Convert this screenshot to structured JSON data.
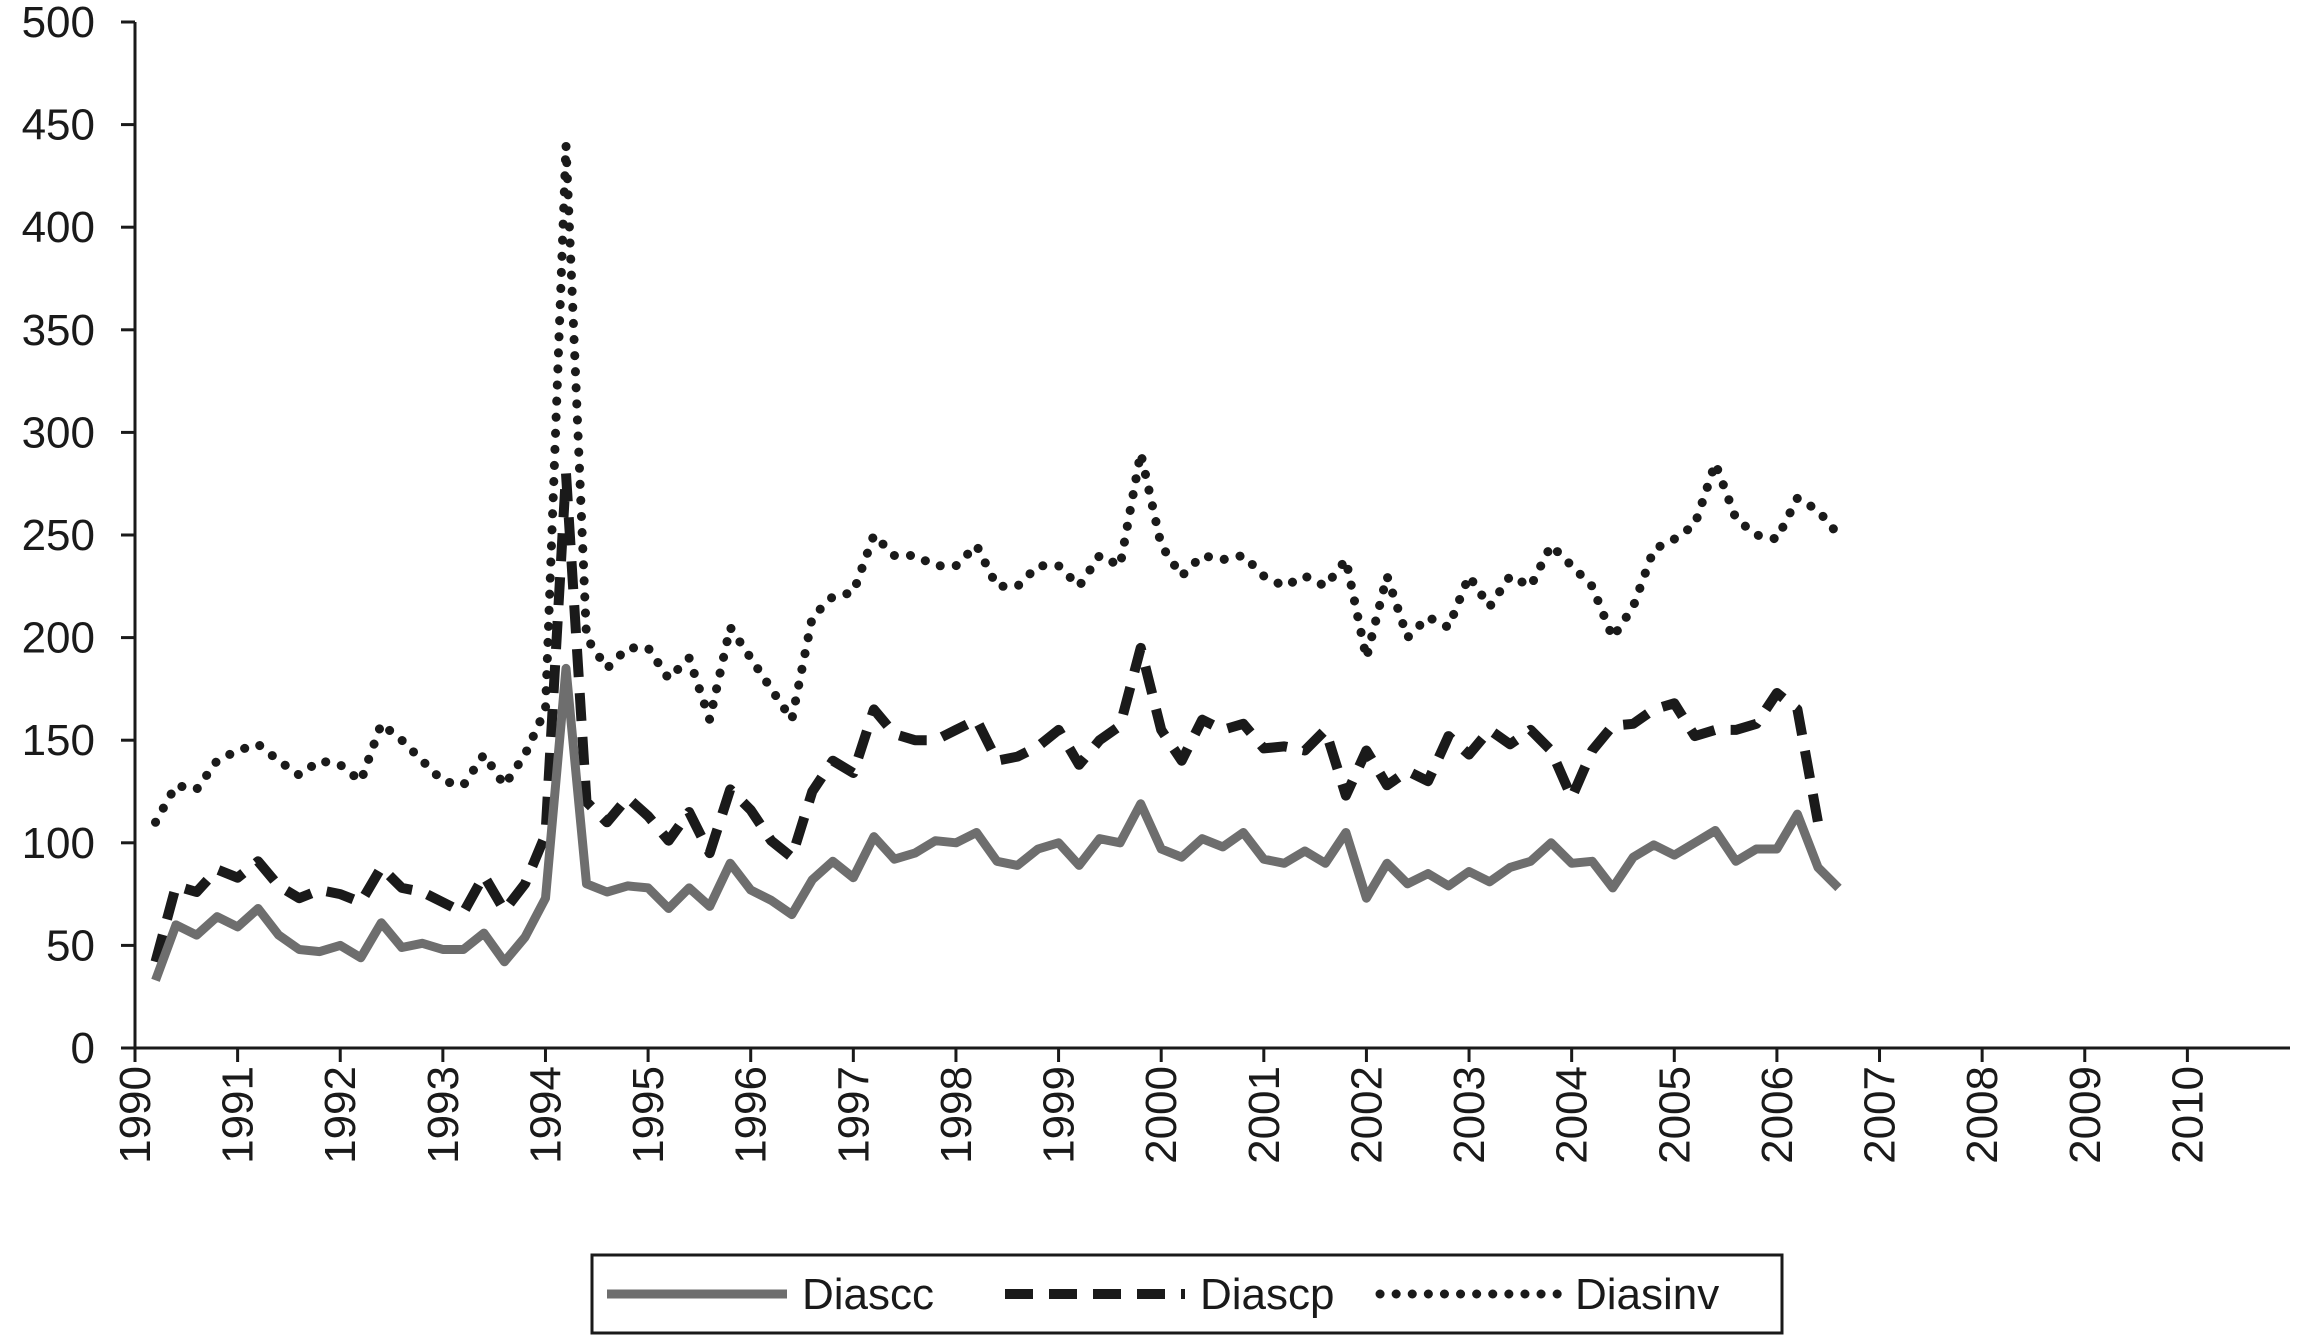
{
  "chart_data": {
    "type": "line",
    "title": "",
    "xlabel": "",
    "ylabel": "",
    "xlim": [
      1990,
      2011
    ],
    "ylim": [
      0,
      500
    ],
    "x_ticks": [
      "1990",
      "1991",
      "1992",
      "1993",
      "1994",
      "1995",
      "1996",
      "1997",
      "1998",
      "1999",
      "2000",
      "2001",
      "2002",
      "2003",
      "2004",
      "2005",
      "2006",
      "2007",
      "2008",
      "2009",
      "2010"
    ],
    "y_ticks": [
      "0",
      "50",
      "100",
      "150",
      "200",
      "250",
      "300",
      "350",
      "400",
      "450",
      "500"
    ],
    "grid": false,
    "legend": {
      "position": "bottom",
      "entries": [
        "Diascc",
        "Diascp",
        "Diasinv"
      ]
    },
    "series": [
      {
        "name": "Diascc",
        "style": "solid",
        "color": "#6e6e6e",
        "points": [
          [
            1990.2,
            33
          ],
          [
            1990.4,
            60
          ],
          [
            1990.6,
            55
          ],
          [
            1990.8,
            64
          ],
          [
            1991.0,
            59
          ],
          [
            1991.2,
            68
          ],
          [
            1991.4,
            55
          ],
          [
            1991.6,
            48
          ],
          [
            1991.8,
            47
          ],
          [
            1992.0,
            50
          ],
          [
            1992.2,
            44
          ],
          [
            1992.4,
            61
          ],
          [
            1992.6,
            49
          ],
          [
            1992.8,
            51
          ],
          [
            1993.0,
            48
          ],
          [
            1993.2,
            48
          ],
          [
            1993.4,
            56
          ],
          [
            1993.6,
            42
          ],
          [
            1993.8,
            54
          ],
          [
            1994.0,
            73
          ],
          [
            1994.2,
            185
          ],
          [
            1994.4,
            80
          ],
          [
            1994.6,
            76
          ],
          [
            1994.8,
            79
          ],
          [
            1995.0,
            78
          ],
          [
            1995.2,
            68
          ],
          [
            1995.4,
            78
          ],
          [
            1995.6,
            69
          ],
          [
            1995.8,
            90
          ],
          [
            1996.0,
            77
          ],
          [
            1996.2,
            72
          ],
          [
            1996.4,
            65
          ],
          [
            1996.6,
            82
          ],
          [
            1996.8,
            91
          ],
          [
            1997.0,
            83
          ],
          [
            1997.2,
            103
          ],
          [
            1997.4,
            92
          ],
          [
            1997.6,
            95
          ],
          [
            1997.8,
            101
          ],
          [
            1998.0,
            100
          ],
          [
            1998.2,
            105
          ],
          [
            1998.4,
            91
          ],
          [
            1998.6,
            89
          ],
          [
            1998.8,
            97
          ],
          [
            1999.0,
            100
          ],
          [
            1999.2,
            89
          ],
          [
            1999.4,
            102
          ],
          [
            1999.6,
            100
          ],
          [
            1999.8,
            119
          ],
          [
            2000.0,
            97
          ],
          [
            2000.2,
            93
          ],
          [
            2000.4,
            102
          ],
          [
            2000.6,
            98
          ],
          [
            2000.8,
            105
          ],
          [
            2001.0,
            92
          ],
          [
            2001.2,
            90
          ],
          [
            2001.4,
            96
          ],
          [
            2001.6,
            90
          ],
          [
            2001.8,
            105
          ],
          [
            2002.0,
            73
          ],
          [
            2002.2,
            90
          ],
          [
            2002.4,
            80
          ],
          [
            2002.6,
            85
          ],
          [
            2002.8,
            79
          ],
          [
            2003.0,
            86
          ],
          [
            2003.2,
            81
          ],
          [
            2003.4,
            88
          ],
          [
            2003.6,
            91
          ],
          [
            2003.8,
            100
          ],
          [
            2004.0,
            90
          ],
          [
            2004.2,
            91
          ],
          [
            2004.4,
            78
          ],
          [
            2004.6,
            93
          ],
          [
            2004.8,
            99
          ],
          [
            2005.0,
            94
          ],
          [
            2005.2,
            100
          ],
          [
            2005.4,
            106
          ],
          [
            2005.6,
            91
          ],
          [
            2005.8,
            97
          ],
          [
            2006.0,
            97
          ],
          [
            2006.2,
            114
          ],
          [
            2006.4,
            88
          ],
          [
            2006.6,
            78
          ]
        ]
      },
      {
        "name": "Diascp",
        "style": "dashed",
        "color": "#1a1a1a",
        "points": [
          [
            1990.2,
            42
          ],
          [
            1990.4,
            79
          ],
          [
            1990.6,
            76
          ],
          [
            1990.8,
            87
          ],
          [
            1991.0,
            83
          ],
          [
            1991.2,
            91
          ],
          [
            1991.4,
            79
          ],
          [
            1991.6,
            73
          ],
          [
            1991.8,
            77
          ],
          [
            1992.0,
            75
          ],
          [
            1992.2,
            71
          ],
          [
            1992.4,
            88
          ],
          [
            1992.6,
            78
          ],
          [
            1992.8,
            76
          ],
          [
            1993.0,
            71
          ],
          [
            1993.2,
            66
          ],
          [
            1993.4,
            84
          ],
          [
            1993.6,
            67
          ],
          [
            1993.8,
            80
          ],
          [
            1994.0,
            104
          ],
          [
            1994.2,
            280
          ],
          [
            1994.4,
            120
          ],
          [
            1994.6,
            110
          ],
          [
            1994.8,
            122
          ],
          [
            1995.0,
            113
          ],
          [
            1995.2,
            101
          ],
          [
            1995.4,
            115
          ],
          [
            1995.6,
            95
          ],
          [
            1995.8,
            126
          ],
          [
            1996.0,
            116
          ],
          [
            1996.2,
            101
          ],
          [
            1996.4,
            93
          ],
          [
            1996.6,
            125
          ],
          [
            1996.8,
            140
          ],
          [
            1997.0,
            134
          ],
          [
            1997.2,
            165
          ],
          [
            1997.4,
            153
          ],
          [
            1997.6,
            150
          ],
          [
            1997.8,
            150
          ],
          [
            1998.0,
            155
          ],
          [
            1998.2,
            160
          ],
          [
            1998.4,
            140
          ],
          [
            1998.6,
            142
          ],
          [
            1998.8,
            147
          ],
          [
            1999.0,
            155
          ],
          [
            1999.2,
            138
          ],
          [
            1999.4,
            150
          ],
          [
            1999.6,
            157
          ],
          [
            1999.8,
            195
          ],
          [
            2000.0,
            155
          ],
          [
            2000.2,
            140
          ],
          [
            2000.4,
            160
          ],
          [
            2000.6,
            155
          ],
          [
            2000.8,
            158
          ],
          [
            2001.0,
            146
          ],
          [
            2001.2,
            147
          ],
          [
            2001.4,
            145
          ],
          [
            2001.6,
            155
          ],
          [
            2001.8,
            123
          ],
          [
            2002.0,
            145
          ],
          [
            2002.2,
            128
          ],
          [
            2002.4,
            135
          ],
          [
            2002.6,
            130
          ],
          [
            2002.8,
            152
          ],
          [
            2003.0,
            143
          ],
          [
            2003.2,
            155
          ],
          [
            2003.4,
            148
          ],
          [
            2003.6,
            155
          ],
          [
            2003.8,
            145
          ],
          [
            2004.0,
            122
          ],
          [
            2004.2,
            145
          ],
          [
            2004.4,
            157
          ],
          [
            2004.6,
            158
          ],
          [
            2004.8,
            165
          ],
          [
            2005.0,
            168
          ],
          [
            2005.2,
            152
          ],
          [
            2005.4,
            155
          ],
          [
            2005.6,
            155
          ],
          [
            2005.8,
            158
          ],
          [
            2006.0,
            173
          ],
          [
            2006.2,
            165
          ],
          [
            2006.4,
            110
          ]
        ]
      },
      {
        "name": "Diasinv",
        "style": "dotted",
        "color": "#1a1a1a",
        "points": [
          [
            1990.2,
            110
          ],
          [
            1990.4,
            128
          ],
          [
            1990.6,
            126
          ],
          [
            1990.8,
            140
          ],
          [
            1991.0,
            145
          ],
          [
            1991.2,
            148
          ],
          [
            1991.4,
            140
          ],
          [
            1991.6,
            133
          ],
          [
            1991.8,
            140
          ],
          [
            1992.0,
            138
          ],
          [
            1992.2,
            130
          ],
          [
            1992.4,
            158
          ],
          [
            1992.6,
            150
          ],
          [
            1992.8,
            140
          ],
          [
            1993.0,
            130
          ],
          [
            1993.2,
            128
          ],
          [
            1993.4,
            143
          ],
          [
            1993.6,
            128
          ],
          [
            1993.8,
            143
          ],
          [
            1994.0,
            165
          ],
          [
            1994.2,
            440
          ],
          [
            1994.4,
            200
          ],
          [
            1994.6,
            185
          ],
          [
            1994.8,
            195
          ],
          [
            1995.0,
            195
          ],
          [
            1995.2,
            180
          ],
          [
            1995.4,
            190
          ],
          [
            1995.6,
            160
          ],
          [
            1995.8,
            205
          ],
          [
            1996.0,
            190
          ],
          [
            1996.2,
            175
          ],
          [
            1996.4,
            160
          ],
          [
            1996.6,
            210
          ],
          [
            1996.8,
            220
          ],
          [
            1997.0,
            222
          ],
          [
            1997.2,
            250
          ],
          [
            1997.4,
            240
          ],
          [
            1997.6,
            240
          ],
          [
            1997.8,
            235
          ],
          [
            1998.0,
            235
          ],
          [
            1998.2,
            245
          ],
          [
            1998.4,
            225
          ],
          [
            1998.6,
            225
          ],
          [
            1998.8,
            235
          ],
          [
            1999.0,
            235
          ],
          [
            1999.2,
            225
          ],
          [
            1999.4,
            240
          ],
          [
            1999.6,
            235
          ],
          [
            1999.8,
            290
          ],
          [
            2000.0,
            245
          ],
          [
            2000.2,
            230
          ],
          [
            2000.4,
            240
          ],
          [
            2000.6,
            238
          ],
          [
            2000.8,
            240
          ],
          [
            2001.0,
            230
          ],
          [
            2001.2,
            225
          ],
          [
            2001.4,
            230
          ],
          [
            2001.6,
            225
          ],
          [
            2001.8,
            238
          ],
          [
            2002.0,
            190
          ],
          [
            2002.2,
            230
          ],
          [
            2002.4,
            200
          ],
          [
            2002.6,
            210
          ],
          [
            2002.8,
            205
          ],
          [
            2003.0,
            230
          ],
          [
            2003.2,
            215
          ],
          [
            2003.4,
            230
          ],
          [
            2003.6,
            225
          ],
          [
            2003.8,
            245
          ],
          [
            2004.0,
            235
          ],
          [
            2004.2,
            225
          ],
          [
            2004.4,
            200
          ],
          [
            2004.6,
            215
          ],
          [
            2004.8,
            243
          ],
          [
            2005.0,
            248
          ],
          [
            2005.2,
            255
          ],
          [
            2005.4,
            285
          ],
          [
            2005.6,
            258
          ],
          [
            2005.8,
            250
          ],
          [
            2006.0,
            248
          ],
          [
            2006.2,
            268
          ],
          [
            2006.4,
            262
          ],
          [
            2006.6,
            250
          ]
        ]
      }
    ]
  },
  "colors": {
    "axis": "#1a1a1a",
    "diascc": "#6e6e6e",
    "diascp": "#1a1a1a",
    "diasinv": "#1a1a1a"
  }
}
